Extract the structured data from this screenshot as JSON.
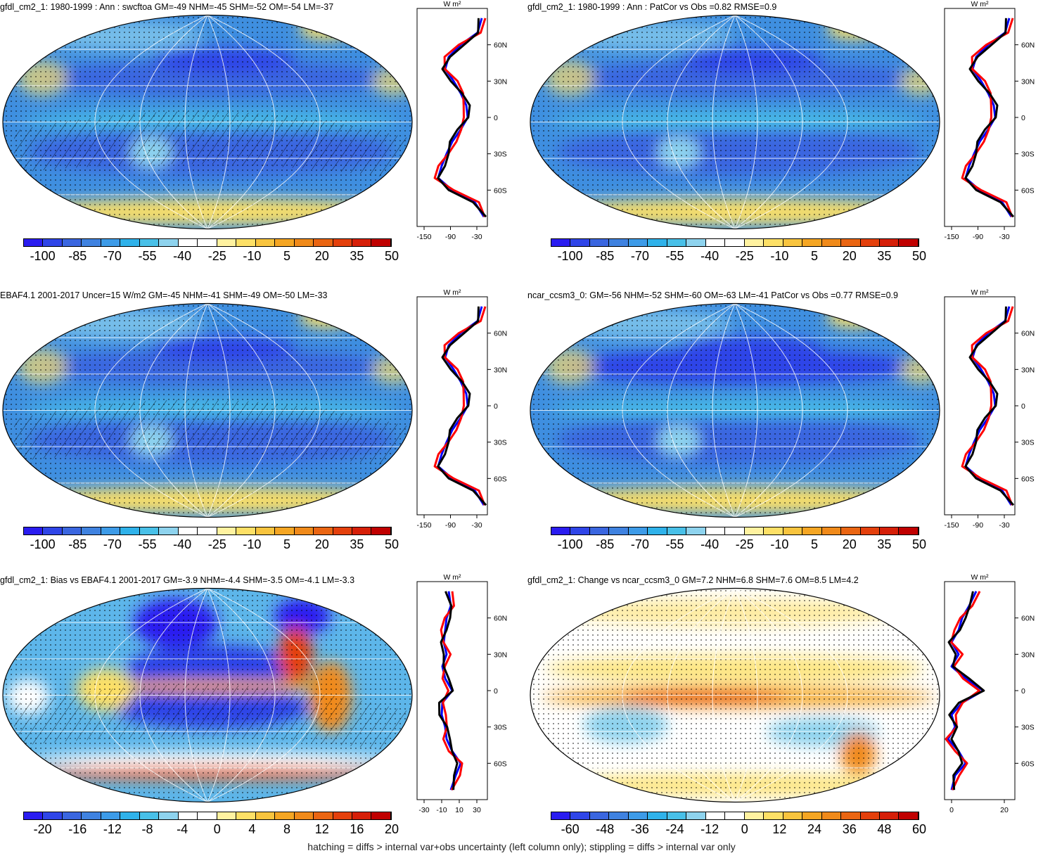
{
  "footnote": "hatching = diffs > internal var+obs uncertainty (left column only); stippling = diffs > internal var only",
  "profile_unit": "W m²",
  "lat_ticks": [
    "60N",
    "30N",
    "0",
    "30S",
    "60S"
  ],
  "colors": {
    "diverging": [
      "#2a1cf0",
      "#2f45e8",
      "#3a66e0",
      "#3f82e0",
      "#3d9be8",
      "#2fb2ea",
      "#48c0e8",
      "#8ed3ee",
      "#ffffff",
      "#ffffff",
      "#fff2a0",
      "#fde066",
      "#f8c43e",
      "#f5a623",
      "#f08a1a",
      "#ea6512",
      "#e4400c",
      "#d61f08",
      "#c00000"
    ],
    "model": "#0000ff",
    "obs": "#ff0000",
    "other": "#000000"
  },
  "panels": [
    {
      "title": "gfdl_cm2_1: 1980-1999 : Ann : swcftoa GM=-49 NHM=-45 SHM=-52 OM=-54 LM=-37",
      "colorbar_labels": [
        "-100",
        "-85",
        "-70",
        "-55",
        "-40",
        "-25",
        "-10",
        "5",
        "20",
        "35",
        "50"
      ],
      "profile_xlabels": [
        "-150",
        "-90",
        "-30"
      ],
      "hatched": true
    },
    {
      "title": "gfdl_cm2_1: 1980-1999 : Ann : PatCor vs Obs =0.82 RMSE=0.9",
      "colorbar_labels": [
        "-100",
        "-85",
        "-70",
        "-55",
        "-40",
        "-25",
        "-10",
        "5",
        "20",
        "35",
        "50"
      ],
      "profile_xlabels": [
        "-150",
        "-90",
        "-30"
      ],
      "hatched": false
    },
    {
      "title": "EBAF4.1 2001-2017 Uncer=15 W/m2 GM=-45 NHM=-41 SHM=-49 OM=-50 LM=-33",
      "colorbar_labels": [
        "-100",
        "-85",
        "-70",
        "-55",
        "-40",
        "-25",
        "-10",
        "5",
        "20",
        "35",
        "50"
      ],
      "profile_xlabels": [
        "-150",
        "-90",
        "-30"
      ],
      "hatched": true
    },
    {
      "title": "ncar_ccsm3_0: GM=-56 NHM=-52 SHM=-60 OM=-63 LM=-41 PatCor vs Obs =0.77 RMSE=0.9",
      "colorbar_labels": [
        "-100",
        "-85",
        "-70",
        "-55",
        "-40",
        "-25",
        "-10",
        "5",
        "20",
        "35",
        "50"
      ],
      "profile_xlabels": [
        "-150",
        "-90",
        "-30"
      ],
      "hatched": false
    },
    {
      "title": "gfdl_cm2_1: Bias vs EBAF4.1 2001-2017 GM=-3.9 NHM=-4.4 SHM=-3.5 OM=-4.1 LM=-3.3",
      "colorbar_labels": [
        "-20",
        "-16",
        "-12",
        "-8",
        "-4",
        "0",
        "4",
        "8",
        "12",
        "16",
        "20"
      ],
      "profile_xlabels": [
        "-30",
        "-10",
        "10",
        "30"
      ],
      "hatched": true
    },
    {
      "title": "gfdl_cm2_1: Change vs ncar_ccsm3_0 GM=7.2 NHM=6.8 SHM=7.6 OM=8.5 LM=4.2",
      "colorbar_labels": [
        "-60",
        "-48",
        "-36",
        "-24",
        "-12",
        "0",
        "12",
        "24",
        "36",
        "48",
        "60"
      ],
      "profile_xlabels": [
        "0",
        "20"
      ],
      "hatched": false
    }
  ]
}
